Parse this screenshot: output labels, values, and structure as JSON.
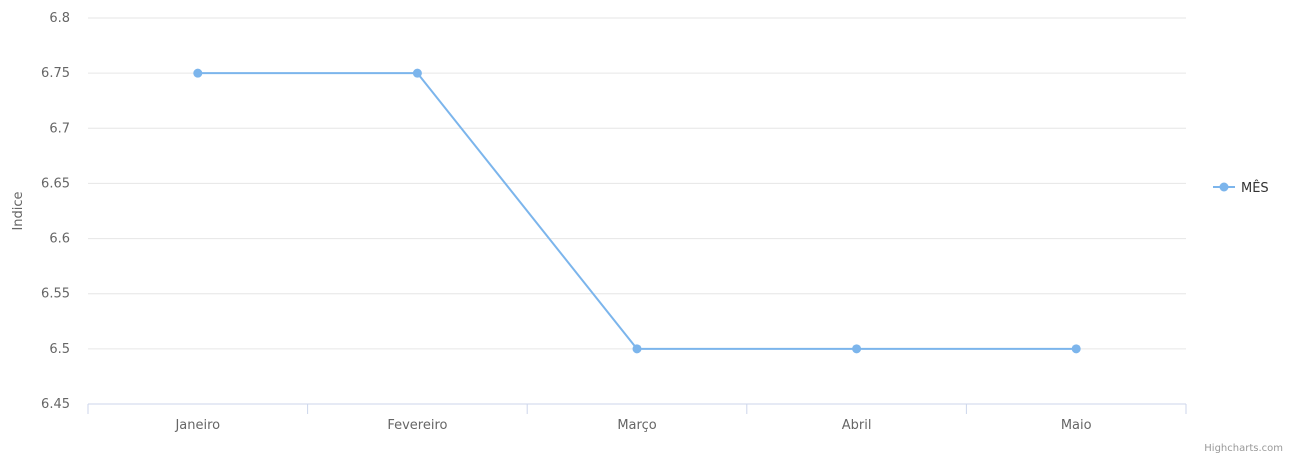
{
  "chart_data": {
    "type": "line",
    "title": "",
    "categories": [
      "Janeiro",
      "Fevereiro",
      "Março",
      "Abril",
      "Maio"
    ],
    "series": [
      {
        "name": "MÊS",
        "values": [
          6.75,
          6.75,
          6.5,
          6.5,
          6.5
        ],
        "color": "#7cb5ec"
      }
    ],
    "ylabel": "Indice",
    "xlabel": "",
    "ylim": [
      6.45,
      6.8
    ],
    "yticks": [
      "6.45",
      "6.5",
      "6.55",
      "6.6",
      "6.65",
      "6.7",
      "6.75",
      "6.8"
    ],
    "grid": true,
    "legend_position": "right"
  },
  "credits": "Highcharts.com",
  "colors": {
    "grid": "#e6e6e6",
    "axis": "#ccd6eb",
    "label": "#666666"
  }
}
